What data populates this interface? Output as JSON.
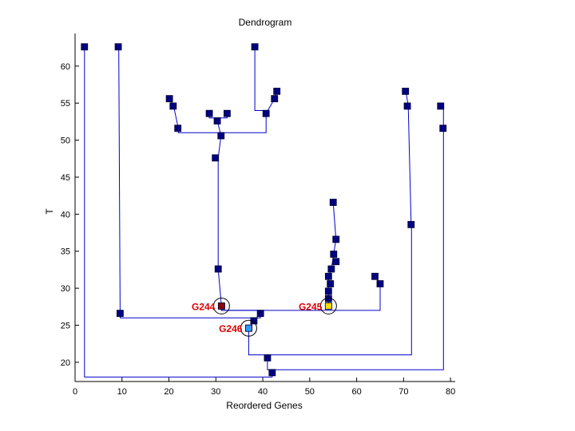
{
  "chart_data": {
    "type": "dendrogram",
    "title": "Dendrogram",
    "xlabel": "Reordered Genes",
    "ylabel": "T",
    "xlim": [
      0,
      81
    ],
    "ylim": [
      17.4,
      64.4
    ],
    "xticks": [
      0,
      10,
      20,
      30,
      40,
      50,
      60,
      70,
      80
    ],
    "yticks": [
      20,
      25,
      30,
      35,
      40,
      45,
      50,
      55,
      60
    ],
    "grid": false,
    "colors": {
      "line": "#0000cc",
      "node": "#000080",
      "highlight_text": "#dd0000"
    },
    "nodes": [
      {
        "x": 2.0,
        "y": 62.6
      },
      {
        "x": 9.2,
        "y": 62.6
      },
      {
        "x": 38.3,
        "y": 62.6
      },
      {
        "x": 20.1,
        "y": 55.6
      },
      {
        "x": 20.9,
        "y": 54.6
      },
      {
        "x": 21.9,
        "y": 51.6
      },
      {
        "x": 28.6,
        "y": 53.6
      },
      {
        "x": 30.3,
        "y": 52.6
      },
      {
        "x": 32.4,
        "y": 53.6
      },
      {
        "x": 31.1,
        "y": 50.6
      },
      {
        "x": 29.9,
        "y": 47.6
      },
      {
        "x": 43.0,
        "y": 56.6
      },
      {
        "x": 42.5,
        "y": 55.6
      },
      {
        "x": 40.7,
        "y": 53.6
      },
      {
        "x": 30.5,
        "y": 32.6
      },
      {
        "x": 31.2,
        "y": 27.6
      },
      {
        "x": 39.5,
        "y": 26.6
      },
      {
        "x": 9.6,
        "y": 26.6
      },
      {
        "x": 38.1,
        "y": 25.6
      },
      {
        "x": 37.0,
        "y": 24.6
      },
      {
        "x": 41.0,
        "y": 20.6
      },
      {
        "x": 42.0,
        "y": 18.6
      },
      {
        "x": 55.0,
        "y": 41.6
      },
      {
        "x": 55.6,
        "y": 36.6
      },
      {
        "x": 55.1,
        "y": 34.6
      },
      {
        "x": 55.6,
        "y": 33.6
      },
      {
        "x": 54.6,
        "y": 32.6
      },
      {
        "x": 54.0,
        "y": 31.6
      },
      {
        "x": 54.4,
        "y": 30.6
      },
      {
        "x": 54.0,
        "y": 29.6
      },
      {
        "x": 54.0,
        "y": 28.6
      },
      {
        "x": 54.0,
        "y": 27.6
      },
      {
        "x": 63.9,
        "y": 31.6
      },
      {
        "x": 65.0,
        "y": 30.6
      },
      {
        "x": 70.4,
        "y": 56.6
      },
      {
        "x": 70.8,
        "y": 54.6
      },
      {
        "x": 71.6,
        "y": 38.6
      },
      {
        "x": 77.9,
        "y": 54.6
      },
      {
        "x": 78.4,
        "y": 51.6
      }
    ],
    "links": [
      [
        [
          2.0,
          62.6
        ],
        [
          2.0,
          18.0
        ],
        [
          42.0,
          18.0
        ],
        [
          42.0,
          18.6
        ]
      ],
      [
        [
          42.0,
          18.6
        ],
        [
          42.0,
          19.0
        ],
        [
          78.5,
          19.0
        ],
        [
          78.5,
          51.6
        ]
      ],
      [
        [
          78.5,
          51.6
        ],
        [
          78.5,
          54.6
        ]
      ],
      [
        [
          42.0,
          19.0
        ],
        [
          41.0,
          19.0
        ],
        [
          41.0,
          20.6
        ]
      ],
      [
        [
          41.0,
          20.6
        ],
        [
          41.0,
          21.0
        ],
        [
          37.0,
          21.0
        ],
        [
          37.0,
          24.6
        ]
      ],
      [
        [
          41.0,
          21.0
        ],
        [
          71.7,
          21.0
        ],
        [
          71.7,
          38.6
        ]
      ],
      [
        [
          71.6,
          38.6
        ],
        [
          71.0,
          54.6
        ],
        [
          70.5,
          56.6
        ]
      ],
      [
        [
          37.0,
          24.6
        ],
        [
          38.1,
          25.6
        ],
        [
          39.5,
          26.6
        ]
      ],
      [
        [
          39.5,
          26.6
        ],
        [
          39.5,
          26.0
        ],
        [
          9.6,
          26.0
        ],
        [
          9.6,
          26.6
        ]
      ],
      [
        [
          9.6,
          26.6
        ],
        [
          9.3,
          62.6
        ]
      ],
      [
        [
          39.5,
          26.6
        ],
        [
          39.5,
          27.0
        ],
        [
          31.2,
          27.0
        ],
        [
          31.2,
          27.6
        ]
      ],
      [
        [
          31.2,
          27.6
        ],
        [
          31.2,
          27.0
        ],
        [
          65.0,
          27.0
        ],
        [
          65.0,
          30.6
        ]
      ],
      [
        [
          65.0,
          30.6
        ],
        [
          63.9,
          31.6
        ]
      ],
      [
        [
          31.2,
          27.6
        ],
        [
          30.5,
          32.6
        ],
        [
          30.5,
          47.6
        ]
      ],
      [
        [
          30.5,
          47.6
        ],
        [
          31.1,
          50.6
        ],
        [
          31.1,
          51.0
        ],
        [
          22.0,
          51.0
        ],
        [
          22.0,
          51.6
        ]
      ],
      [
        [
          22.0,
          51.6
        ],
        [
          21.0,
          54.6
        ],
        [
          20.2,
          55.6
        ]
      ],
      [
        [
          31.1,
          51.0
        ],
        [
          40.7,
          51.0
        ],
        [
          40.7,
          53.6
        ]
      ],
      [
        [
          40.7,
          53.6
        ],
        [
          42.5,
          55.6
        ],
        [
          43.0,
          56.6
        ]
      ],
      [
        [
          40.7,
          53.6
        ],
        [
          40.7,
          54.0
        ],
        [
          38.3,
          54.0
        ],
        [
          38.3,
          62.6
        ]
      ],
      [
        [
          31.1,
          50.6
        ],
        [
          30.3,
          52.6
        ]
      ],
      [
        [
          28.6,
          53.6
        ],
        [
          28.6,
          53.0
        ],
        [
          32.4,
          53.0
        ],
        [
          32.4,
          53.6
        ]
      ],
      [
        [
          54.0,
          27.6
        ],
        [
          54.0,
          31.6
        ],
        [
          54.6,
          32.6
        ],
        [
          55.1,
          34.6
        ],
        [
          55.6,
          36.6
        ],
        [
          55.0,
          41.6
        ]
      ]
    ],
    "highlights": [
      {
        "label": "G244",
        "x": 31.2,
        "y": 27.6,
        "fill": "#8b0000"
      },
      {
        "label": "G246",
        "x": 37.0,
        "y": 24.6,
        "fill": "#3399ff"
      },
      {
        "label": "G245",
        "x": 54.0,
        "y": 27.6,
        "fill": "#ffdd00"
      }
    ]
  }
}
